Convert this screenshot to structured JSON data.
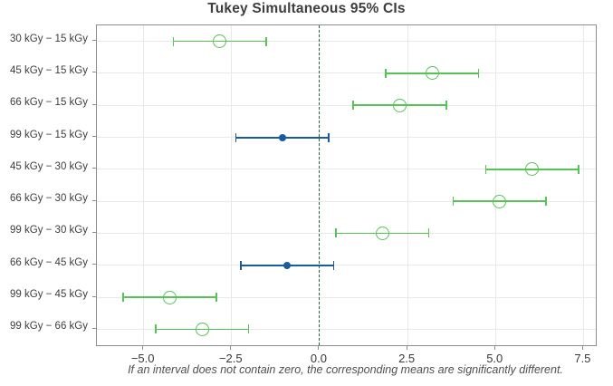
{
  "title": "Tukey Simultaneous 95% CIs",
  "footnote": "If an interval does not contain zero, the corresponding means are significantly different.",
  "colors": {
    "significant": "#55c455",
    "not_significant": "#1a5a9e",
    "zero_line": "#236e3c",
    "grid": "#e9e9e9",
    "plot_border": "#8c8c8c",
    "tick": "#8c8c8c",
    "title_text": "#3d3d3d",
    "label_text": "#3d3d3d",
    "footnote_text": "#4f4f4f"
  },
  "chart_data": {
    "type": "scatter",
    "subtype": "confidence-interval-plot",
    "title": "Tukey Simultaneous 95% CIs",
    "xlabel": "",
    "ylabel": "",
    "xlim": [
      -6.33,
      7.85
    ],
    "grid": true,
    "legend": "none",
    "zero_reference_line": 0,
    "xticks": [
      {
        "value": -5.0,
        "label": "−5.0"
      },
      {
        "value": -2.5,
        "label": "−2.5"
      },
      {
        "value": 0.0,
        "label": "0.0"
      },
      {
        "value": 2.5,
        "label": "2.5"
      },
      {
        "value": 5.0,
        "label": "5.0"
      },
      {
        "value": 7.5,
        "label": "7.5"
      }
    ],
    "categories": [
      "30 kGy − 15 kGy",
      "45 kGy − 15 kGy",
      "66 kGy − 15 kGy",
      "99 kGy − 15 kGy",
      "45 kGy − 30 kGy",
      "66 kGy − 30 kGy",
      "99 kGy − 30 kGy",
      "66 kGy − 45 kGy",
      "99 kGy − 45 kGy",
      "99 kGy − 66 kGy"
    ],
    "intervals": [
      {
        "label": "30 kGy − 15 kGy",
        "center": -2.84,
        "lower": -4.16,
        "upper": -1.52,
        "significant": true
      },
      {
        "label": "45 kGy − 15 kGy",
        "center": 3.2,
        "lower": 1.88,
        "upper": 4.52,
        "significant": true
      },
      {
        "label": "66 kGy − 15 kGy",
        "center": 2.28,
        "lower": 0.96,
        "upper": 3.6,
        "significant": true
      },
      {
        "label": "99 kGy − 15 kGy",
        "center": -1.06,
        "lower": -2.38,
        "upper": 0.26,
        "significant": false
      },
      {
        "label": "45 kGy − 30 kGy",
        "center": 6.04,
        "lower": 4.72,
        "upper": 7.36,
        "significant": true
      },
      {
        "label": "66 kGy − 30 kGy",
        "center": 5.12,
        "lower": 3.8,
        "upper": 6.44,
        "significant": true
      },
      {
        "label": "99 kGy − 30 kGy",
        "center": 1.78,
        "lower": 0.46,
        "upper": 3.1,
        "significant": true
      },
      {
        "label": "66 kGy − 45 kGy",
        "center": -0.92,
        "lower": -2.24,
        "upper": 0.4,
        "significant": false
      },
      {
        "label": "99 kGy − 45 kGy",
        "center": -4.26,
        "lower": -5.58,
        "upper": -2.94,
        "significant": true
      },
      {
        "label": "99 kGy − 66 kGy",
        "center": -3.34,
        "lower": -4.66,
        "upper": -2.02,
        "significant": true
      }
    ],
    "marker_styles": {
      "significant": "open-circle-green",
      "not_significant": "filled-circle-blue"
    }
  }
}
